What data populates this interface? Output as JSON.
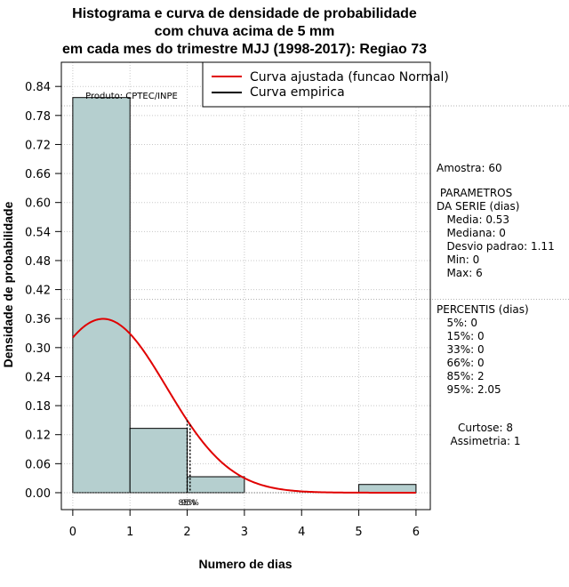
{
  "chart_data": {
    "type": "histogram",
    "title_lines": [
      "Histograma e curva de densidade de probabilidade",
      "com chuva acima de 5 mm",
      "em cada mes do trimestre MJJ (1998-2017): Regiao 73"
    ],
    "xlabel": "Numero de dias",
    "ylabel": "Densidade de probabilidade",
    "xlim": [
      -0.2,
      6.25
    ],
    "ylim": [
      -0.035,
      0.89
    ],
    "x_ticks": [
      0,
      1,
      2,
      3,
      4,
      5,
      6
    ],
    "y_ticks": [
      0.0,
      0.06,
      0.12,
      0.18,
      0.24,
      0.3,
      0.36,
      0.42,
      0.48,
      0.54,
      0.6,
      0.66,
      0.72,
      0.78,
      0.84
    ],
    "y_tick_labels": [
      "0.00",
      "0.06",
      "0.12",
      "0.18",
      "0.24",
      "0.30",
      "0.36",
      "0.42",
      "0.48",
      "0.54",
      "0.60",
      "0.66",
      "0.72",
      "0.78",
      "0.84"
    ],
    "bins": [
      {
        "x0": 0,
        "x1": 1,
        "density": 0.817
      },
      {
        "x0": 1,
        "x1": 2,
        "density": 0.133
      },
      {
        "x0": 2,
        "x1": 3,
        "density": 0.033
      },
      {
        "x0": 3,
        "x1": 4,
        "density": 0.0
      },
      {
        "x0": 4,
        "x1": 5,
        "density": 0.0
      },
      {
        "x0": 5,
        "x1": 6,
        "density": 0.017
      }
    ],
    "normal_fit": {
      "mean": 0.53,
      "sd": 1.11,
      "x_range": [
        0,
        6
      ]
    },
    "horizontal_reference_lines": [
      0.8,
      0.4
    ],
    "percentile_markers": [
      {
        "label": "85%",
        "x": 2.0
      },
      {
        "label": "95%",
        "x": 2.05
      }
    ],
    "bar_color": "#b5cfcf",
    "curve_color": "#e00000",
    "legend": {
      "position": "top-right",
      "entries": [
        {
          "label": "Curva ajustada (funcao Normal)",
          "color": "#e00000"
        },
        {
          "label": "Curva empirica",
          "color": "#000000"
        }
      ]
    },
    "credit": "Produto: CPTEC/INPE"
  },
  "stats": {
    "sample": "Amostra: 60",
    "params_lines": [
      " PARAMETROS",
      "DA SERIE (dias)",
      "   Media: 0.53",
      "   Mediana: 0",
      "   Desvio padrao: 1.11",
      "   Min: 0",
      "   Max: 6"
    ],
    "percentile_lines": [
      "PERCENTIS (dias)",
      "   5%: 0",
      "   15%: 0",
      "   33%: 0",
      "   66%: 0",
      "   85%: 2",
      "   95%: 2.05"
    ],
    "shape_lines": [
      "Curtose: 8",
      "Assimetria: 1"
    ]
  }
}
